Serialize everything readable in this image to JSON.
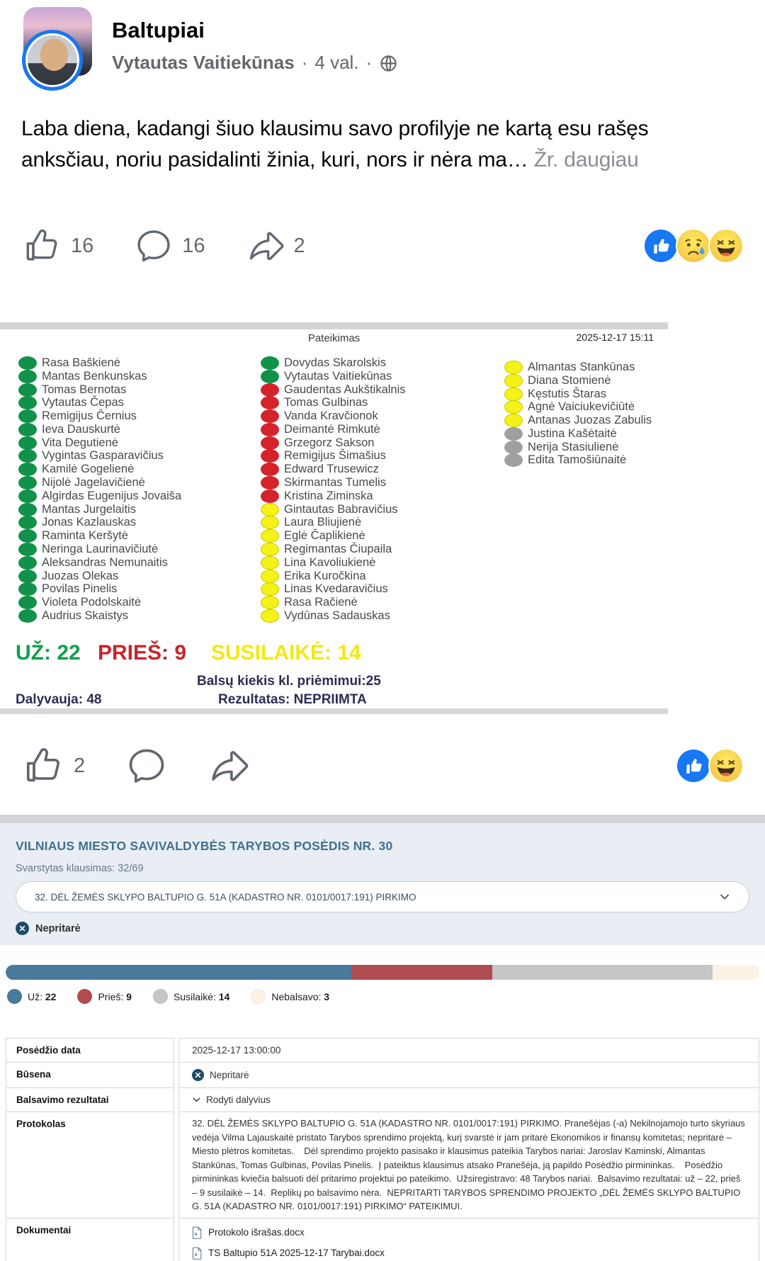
{
  "colors": {
    "votes": {
      "uz": "#119149",
      "pries": "#d5232b",
      "susilaike": "#f4f216",
      "nebalsavo": "#9da0a3"
    },
    "bar": {
      "uz": "#497a9c",
      "pries": "#af4c51",
      "susilaike": "#c6c6c6",
      "nebalsavo": "#fbf1e4"
    },
    "like_blue": "#1877f2"
  },
  "post": {
    "group_name": "Baltupiai",
    "author": "Vytautas Vaitiekūnas",
    "separator": "·",
    "time": "4 val.",
    "text": "Laba diena, kadangi šiuo klausimu savo profilyje ne kartą esu rašęs anksčiau, noriu pasidalinti žinia, kuri, nors ir nėra ma…",
    "see_more": "Žr. daugiau",
    "like_count": "16",
    "comment_count": "16",
    "share_count": "2"
  },
  "vote_image": {
    "header": "Pateikimas",
    "timestamp": "2025-12-17 15:11",
    "columns": [
      {
        "members": [
          {
            "n": "Rasa Baškienė",
            "v": "uz"
          },
          {
            "n": "Mantas Benkunskas",
            "v": "uz"
          },
          {
            "n": "Tomas Bernotas",
            "v": "uz"
          },
          {
            "n": "Vytautas Čepas",
            "v": "uz"
          },
          {
            "n": "Remigijus Černius",
            "v": "uz"
          },
          {
            "n": "Ieva Dauskurtė",
            "v": "uz"
          },
          {
            "n": "Vita Degutienė",
            "v": "uz"
          },
          {
            "n": "Vygintas Gasparavičius",
            "v": "uz"
          },
          {
            "n": "Kamilė Gogelienė",
            "v": "uz"
          },
          {
            "n": "Nijolė Jagelavičienė",
            "v": "uz"
          },
          {
            "n": "Algirdas Eugenijus Jovaiša",
            "v": "uz"
          },
          {
            "n": "Mantas Jurgelaitis",
            "v": "uz"
          },
          {
            "n": "Jonas Kazlauskas",
            "v": "uz"
          },
          {
            "n": "Raminta Keršytė",
            "v": "uz"
          },
          {
            "n": "Neringa Laurinavičiutė",
            "v": "uz"
          },
          {
            "n": "Aleksandras Nemunaitis",
            "v": "uz"
          },
          {
            "n": "Juozas Olekas",
            "v": "uz"
          },
          {
            "n": "Povilas Pinelis",
            "v": "uz"
          },
          {
            "n": "Violeta Podolskaitė",
            "v": "uz"
          },
          {
            "n": "Audrius Skaistys",
            "v": "uz"
          }
        ]
      },
      {
        "members": [
          {
            "n": "Dovydas Skarolskis",
            "v": "uz"
          },
          {
            "n": "Vytautas Vaitiekūnas",
            "v": "uz"
          },
          {
            "n": "Gaudentas Aukštikalnis",
            "v": "pries"
          },
          {
            "n": "Tomas Gulbinas",
            "v": "pries"
          },
          {
            "n": "Vanda Kravčionok",
            "v": "pries"
          },
          {
            "n": "Deimantė Rimkutė",
            "v": "pries"
          },
          {
            "n": "Grzegorz Sakson",
            "v": "pries"
          },
          {
            "n": "Remigijus Šimašius",
            "v": "pries"
          },
          {
            "n": "Edward Trusewicz",
            "v": "pries"
          },
          {
            "n": "Skirmantas Tumelis",
            "v": "pries"
          },
          {
            "n": "Kristina Ziminska",
            "v": "pries"
          },
          {
            "n": "Gintautas Babravičius",
            "v": "susilaike"
          },
          {
            "n": "Laura Bliujienė",
            "v": "susilaike"
          },
          {
            "n": "Eglė Čaplikienė",
            "v": "susilaike"
          },
          {
            "n": "Regimantas Čiupaila",
            "v": "susilaike"
          },
          {
            "n": "Lina Kavoliukienė",
            "v": "susilaike"
          },
          {
            "n": "Erika Kuročkina",
            "v": "susilaike"
          },
          {
            "n": "Linas Kvedaravičius",
            "v": "susilaike"
          },
          {
            "n": "Rasa Račienė",
            "v": "susilaike"
          },
          {
            "n": "Vydūnas Sadauskas",
            "v": "susilaike"
          }
        ]
      },
      {
        "members": [
          {
            "n": "Almantas Stankūnas",
            "v": "susilaike"
          },
          {
            "n": "Diana Stomienė",
            "v": "susilaike"
          },
          {
            "n": "Kęstutis Štaras",
            "v": "susilaike"
          },
          {
            "n": "Agnė Vaiciukevičiūtė",
            "v": "susilaike"
          },
          {
            "n": "Antanas Juozas Zabulis",
            "v": "susilaike"
          },
          {
            "n": "Justina Kašėtaitė",
            "v": "nebalsavo"
          },
          {
            "n": "Nerija Stasiulienė",
            "v": "nebalsavo"
          },
          {
            "n": "Edita Tamošiūnaitė",
            "v": "nebalsavo"
          }
        ]
      }
    ],
    "totals": {
      "uz": "UŽ: 22",
      "pries": "PRIEŠ: 9",
      "susilaike": "SUSILAIKĖ: 14"
    },
    "quorum": "Balsų kiekis kl. priėmimui:25",
    "attendance": "Dalyvauja: 48",
    "result": "Rezultatas:  NEPRIIMTA"
  },
  "post2": {
    "like_count": "2"
  },
  "widget": {
    "title": "VILNIAUS MIESTO SAVIVALDYBĖS TARYBOS POSĖDIS NR. 30",
    "question_label": "Svarstytas klausimas: 32/69",
    "dropdown_value": "32. DĖL ŽEMĖS SKLYPO BALTUPIO G. 51A (KADASTRO NR. 0101/0017:191) PIRKIMO",
    "status": "Nepritarė",
    "bar": {
      "segments": [
        {
          "key": "uz",
          "label": "Už",
          "value": 22
        },
        {
          "key": "pries",
          "label": "Prieš",
          "value": 9
        },
        {
          "key": "susilaike",
          "label": "Susilaikė",
          "value": 14
        },
        {
          "key": "nebalsavo",
          "label": "Nebalsavo",
          "value": 3
        }
      ]
    },
    "table": {
      "rows": [
        {
          "label": "Posėdžio data",
          "type": "text",
          "value": "2025-12-17 13:00:00"
        },
        {
          "label": "Būsena",
          "type": "status",
          "value": "Nepritarė"
        },
        {
          "label": "Balsavimo rezultatai",
          "type": "expander",
          "value": "Rodyti dalyvius"
        },
        {
          "label": "Protokolas",
          "type": "proto",
          "value": "32. DĖL ŽEMĖS SKLYPO BALTUPIO G. 51A (KADASTRO NR. 0101/0017:191) PIRKIMO. Pranešėjas (-a) Nekilnojamojo turto skyriaus vedėja Vilma Lajauskaitė pristato Tarybos sprendimo projektą, kurį svarstė ir jam pritarė Ekonomikos ir finansų komitetas; nepritarė – Miesto plėtros komitetas.    Dėl sprendimo projekto pasisako ir klausimus pateikia Tarybos nariai: Jaroslav Kaminski, Almantas Stankūnas, Tomas Gulbinas, Povilas Pinelis.  Į pateiktus klausimus atsako Pranešėja, ją papildo Posėdžio pirmininkas.    Posėdžio pirmininkas kviečia balsuoti dėl pritarimo projektui po pateikimo.  Užsiregistravo: 48 Tarybos nariai.  Balsavimo rezultatai: už – 22, prieš – 9 susilaikė – 14.  Replikų po balsavimo nėra.  NEPRITARTI TARYBOS SPRENDIMO PROJEKTO „DĖL ŽEMĖS SKLYPO BALTUPIO G. 51A (KADASTRO NR. 0101/0017:191) PIRKIMO“ PATEIKIMUI."
        },
        {
          "label": "Dokumentai",
          "type": "docs",
          "docs": [
            "Protokolo išrašas.docx",
            "TS Baltupio 51A 2025-12-17 Tarybai.docx"
          ]
        }
      ]
    }
  }
}
